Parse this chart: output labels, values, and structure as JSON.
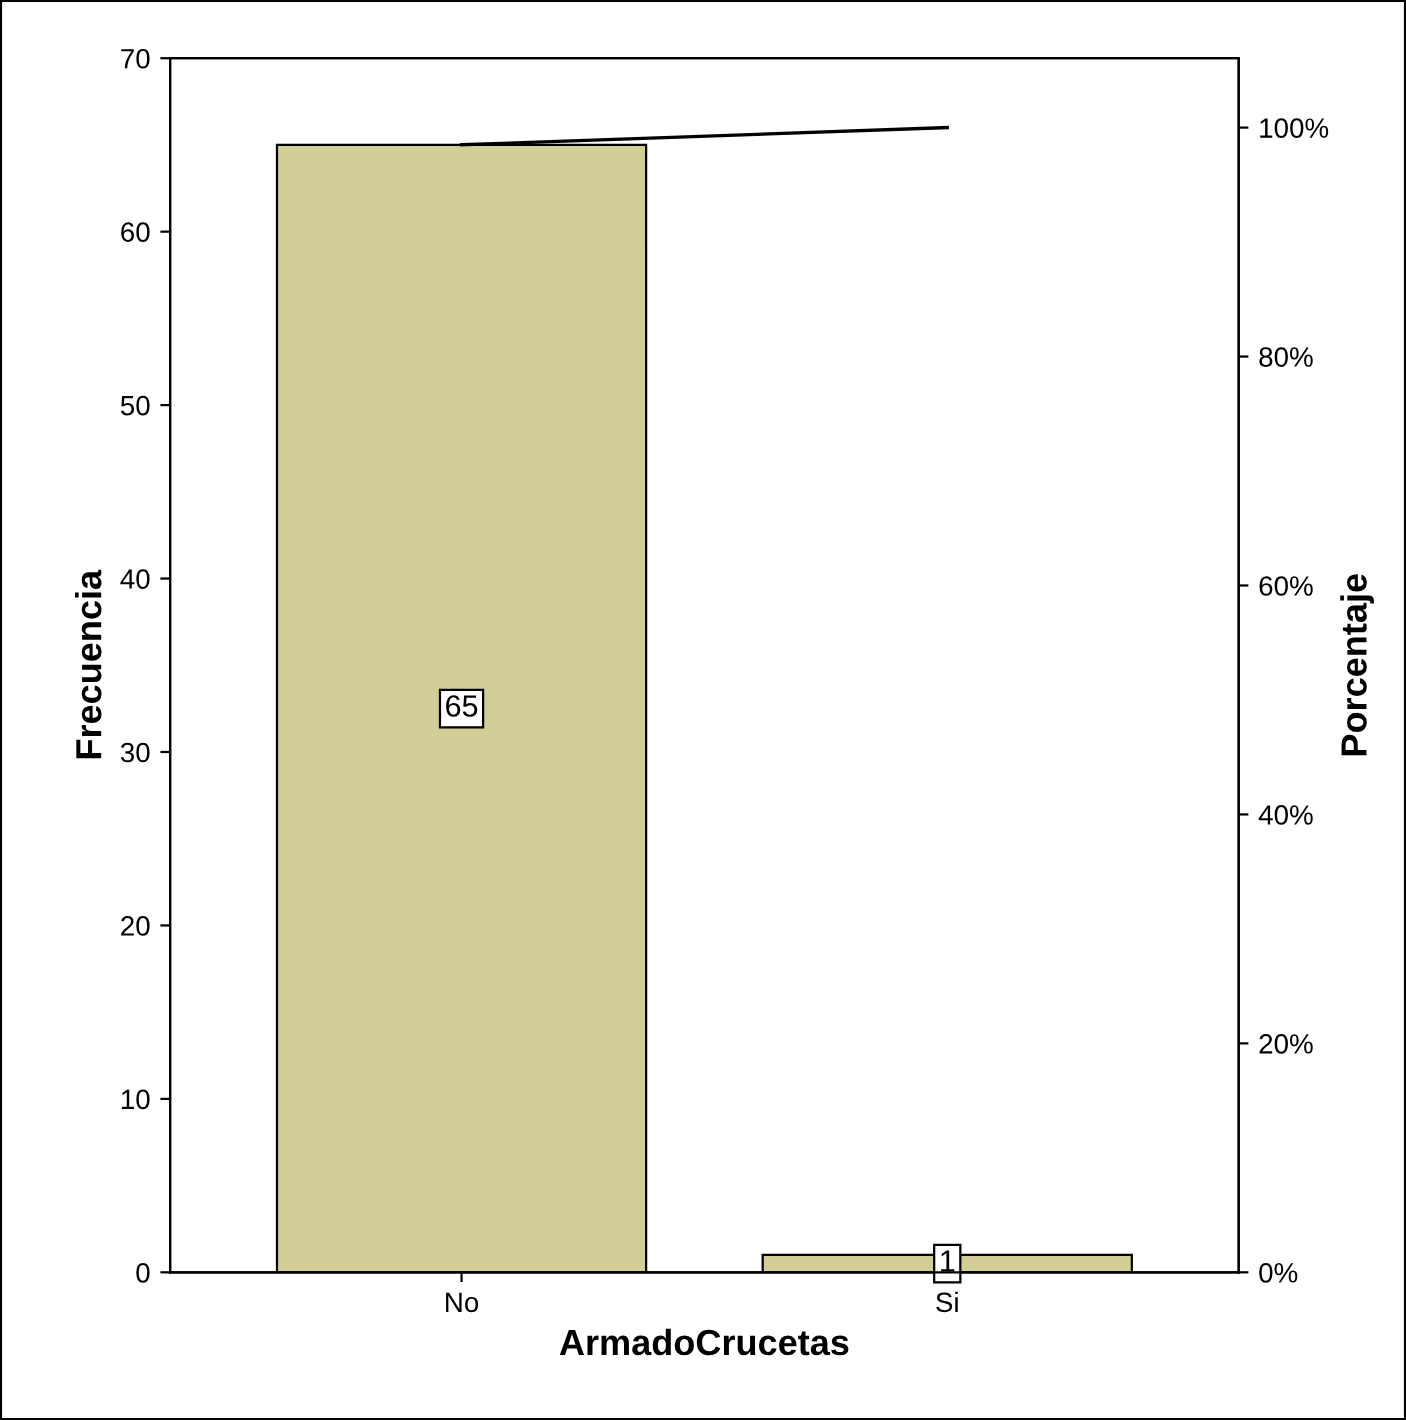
{
  "chart_data": {
    "type": "bar",
    "xlabel": "ArmadoCrucetas",
    "ylabel": "Frecuencia",
    "y2label": "Porcentaje",
    "categories": [
      "No",
      "Si"
    ],
    "series": [
      {
        "color": "#d3ce97",
        "values": [
          65,
          1
        ],
        "value_labels": [
          "65",
          "1"
        ]
      },
      {
        "type": "line",
        "axis": "y2",
        "color": "#000000",
        "values": [
          98.5,
          100
        ]
      }
    ],
    "ylim": [
      0,
      70
    ],
    "yticks": [
      0,
      10,
      20,
      30,
      40,
      50,
      60,
      70
    ],
    "y2lim": [
      0,
      106.06
    ],
    "y2ticks": [
      {
        "value": 0,
        "label": "0%"
      },
      {
        "value": 20,
        "label": "20%"
      },
      {
        "value": 40,
        "label": "40%"
      },
      {
        "value": 60,
        "label": "60%"
      },
      {
        "value": 80,
        "label": "80%"
      },
      {
        "value": 100,
        "label": "100%"
      }
    ],
    "grid": false,
    "legend": false,
    "marker": "none",
    "line_style": "solid"
  }
}
